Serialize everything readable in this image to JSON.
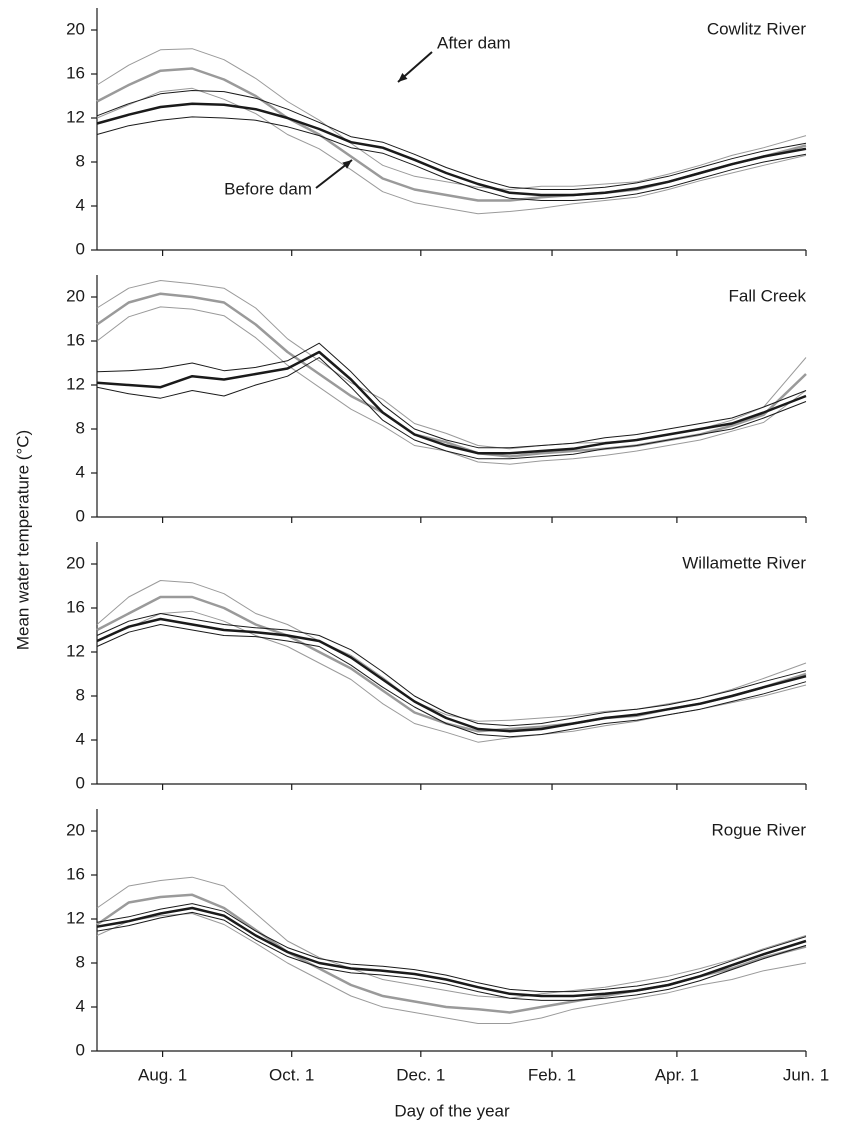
{
  "ylabel": "Mean water temperature (°C)",
  "xlabel": "Day of the year",
  "x": [
    0,
    15,
    30,
    45,
    60,
    75,
    90,
    105,
    120,
    135,
    150,
    165,
    180,
    195,
    210,
    225,
    240,
    255,
    270,
    285,
    300,
    315,
    335
  ],
  "xlim": [
    0,
    335
  ],
  "xticks": [
    {
      "value": 31,
      "label": "Aug. 1"
    },
    {
      "value": 92,
      "label": "Oct. 1"
    },
    {
      "value": 153,
      "label": "Dec. 1"
    },
    {
      "value": 215,
      "label": "Feb. 1"
    },
    {
      "value": 274,
      "label": "Apr. 1"
    },
    {
      "value": 335,
      "label": "Jun. 1"
    }
  ],
  "chart_data": [
    {
      "type": "line",
      "title": "Cowlitz River",
      "ylim": [
        0,
        22
      ],
      "yticks": [
        0,
        4,
        8,
        12,
        16,
        20
      ],
      "annotations": [
        {
          "text": "After dam"
        },
        {
          "text": "Before dam"
        }
      ],
      "series": [
        {
          "color": "#9a9a9a",
          "width": 2.5,
          "values": [
            13.5,
            15,
            16.3,
            16.5,
            15.5,
            14,
            12,
            10.5,
            8.5,
            6.5,
            5.5,
            5,
            4.5,
            4.5,
            4.8,
            5,
            5.2,
            5.5,
            6.2,
            7,
            7.8,
            8.5,
            9.5
          ]
        },
        {
          "color": "#9a9a9a",
          "width": 1,
          "values": [
            15,
            16.8,
            18.2,
            18.3,
            17.3,
            15.6,
            13.5,
            11.8,
            9.7,
            7.7,
            6.7,
            6.2,
            5.7,
            5.5,
            5.8,
            5.8,
            6,
            6.2,
            6.9,
            7.7,
            8.6,
            9.3,
            10.4
          ]
        },
        {
          "color": "#9a9a9a",
          "width": 1,
          "values": [
            12,
            13.2,
            14.4,
            14.7,
            13.7,
            12.4,
            10.5,
            9.2,
            7.3,
            5.3,
            4.3,
            3.8,
            3.3,
            3.5,
            3.8,
            4.2,
            4.5,
            4.8,
            5.5,
            6.3,
            7,
            7.7,
            8.6
          ]
        },
        {
          "color": "#1a1a1a",
          "width": 2.5,
          "values": [
            11.5,
            12.3,
            13,
            13.3,
            13.2,
            12.8,
            12,
            11,
            9.8,
            9.3,
            8.2,
            7,
            6,
            5.2,
            5,
            5,
            5.2,
            5.6,
            6.2,
            7,
            7.8,
            8.5,
            9.2
          ]
        },
        {
          "color": "#1a1a1a",
          "width": 1,
          "values": [
            12.2,
            13.3,
            14.2,
            14.5,
            14.4,
            13.8,
            12.8,
            11.6,
            10.3,
            9.8,
            8.7,
            7.5,
            6.5,
            5.7,
            5.5,
            5.5,
            5.7,
            6.1,
            6.7,
            7.5,
            8.3,
            9,
            9.7
          ]
        },
        {
          "color": "#1a1a1a",
          "width": 1,
          "values": [
            10.5,
            11.3,
            11.8,
            12.1,
            12,
            11.8,
            11.2,
            10.4,
            9.3,
            8.8,
            7.7,
            6.5,
            5.5,
            4.7,
            4.5,
            4.5,
            4.7,
            5.1,
            5.7,
            6.5,
            7.3,
            8,
            8.7
          ]
        }
      ]
    },
    {
      "type": "line",
      "title": "Fall Creek",
      "ylim": [
        0,
        22
      ],
      "yticks": [
        0,
        4,
        8,
        12,
        16,
        20
      ],
      "series": [
        {
          "color": "#9a9a9a",
          "width": 2.5,
          "values": [
            17.5,
            19.5,
            20.3,
            20,
            19.5,
            17.5,
            15,
            13,
            11,
            9.5,
            7.5,
            6.8,
            5.8,
            5.5,
            5.8,
            6,
            6.2,
            6.5,
            7,
            7.5,
            8.3,
            9.3,
            13
          ]
        },
        {
          "color": "#9a9a9a",
          "width": 1,
          "values": [
            19,
            20.8,
            21.5,
            21.2,
            20.8,
            19,
            16.2,
            14.2,
            12.2,
            10.7,
            8.5,
            7.6,
            6.5,
            6.2,
            6.5,
            6.7,
            6.8,
            7,
            7.5,
            8,
            8.8,
            10,
            14.5
          ]
        },
        {
          "color": "#9a9a9a",
          "width": 1,
          "values": [
            16,
            18.2,
            19.1,
            18.9,
            18.3,
            16.3,
            13.8,
            11.8,
            9.8,
            8.3,
            6.5,
            6,
            5,
            4.8,
            5.1,
            5.3,
            5.6,
            6,
            6.5,
            7,
            7.8,
            8.6,
            11.5
          ]
        },
        {
          "color": "#1a1a1a",
          "width": 2.5,
          "values": [
            12.2,
            12,
            11.8,
            12.8,
            12.5,
            13,
            13.5,
            15,
            12.5,
            9.5,
            7.5,
            6.5,
            5.8,
            5.8,
            6,
            6.2,
            6.7,
            7,
            7.5,
            8,
            8.5,
            9.5,
            11
          ]
        },
        {
          "color": "#1a1a1a",
          "width": 1,
          "values": [
            13.2,
            13.3,
            13.5,
            14,
            13.3,
            13.6,
            14.2,
            15.8,
            13.2,
            10.2,
            8,
            7,
            6.3,
            6.3,
            6.5,
            6.7,
            7.2,
            7.5,
            8,
            8.5,
            9,
            10,
            11.5
          ]
        },
        {
          "color": "#1a1a1a",
          "width": 1,
          "values": [
            11.8,
            11.2,
            10.8,
            11.5,
            11,
            12,
            12.8,
            14.5,
            11.8,
            8.8,
            7,
            6,
            5.3,
            5.3,
            5.5,
            5.7,
            6.2,
            6.5,
            7,
            7.5,
            8,
            9,
            10.5
          ]
        }
      ]
    },
    {
      "type": "line",
      "title": "Willamette River",
      "ylim": [
        0,
        22
      ],
      "yticks": [
        0,
        4,
        8,
        12,
        16,
        20
      ],
      "series": [
        {
          "color": "#9a9a9a",
          "width": 2.5,
          "values": [
            14,
            15.5,
            17,
            17,
            16,
            14.5,
            13.5,
            12,
            10.5,
            8.5,
            6.5,
            5.5,
            4.8,
            5,
            5.2,
            5.5,
            6,
            6.2,
            6.8,
            7.3,
            8,
            8.8,
            10
          ]
        },
        {
          "color": "#9a9a9a",
          "width": 1,
          "values": [
            14.5,
            17,
            18.5,
            18.3,
            17.3,
            15.5,
            14.5,
            13,
            11.7,
            9.7,
            7.5,
            6.3,
            5.7,
            5.8,
            6,
            6.2,
            6.6,
            6.8,
            7.3,
            7.8,
            8.6,
            9.6,
            11
          ]
        },
        {
          "color": "#9a9a9a",
          "width": 1,
          "values": [
            13,
            14.2,
            15.5,
            15.7,
            14.8,
            13.5,
            12.5,
            11,
            9.5,
            7.3,
            5.5,
            4.7,
            3.8,
            4.2,
            4.5,
            4.8,
            5.3,
            5.7,
            6.3,
            6.8,
            7.4,
            8,
            9
          ]
        },
        {
          "color": "#1a1a1a",
          "width": 2.5,
          "values": [
            13,
            14.3,
            15,
            14.5,
            14,
            13.8,
            13.5,
            13,
            11.5,
            9.5,
            7.5,
            6,
            5,
            4.8,
            5,
            5.5,
            6,
            6.3,
            6.8,
            7.3,
            8,
            8.8,
            9.8
          ]
        },
        {
          "color": "#1a1a1a",
          "width": 1,
          "values": [
            13.5,
            14.8,
            15.5,
            15,
            14.5,
            14.2,
            14,
            13.5,
            12.2,
            10.2,
            8,
            6.5,
            5.5,
            5.3,
            5.5,
            6,
            6.5,
            6.8,
            7.2,
            7.8,
            8.5,
            9.3,
            10.3
          ]
        },
        {
          "color": "#1a1a1a",
          "width": 1,
          "values": [
            12.5,
            13.8,
            14.5,
            14,
            13.5,
            13.4,
            13,
            12.5,
            10.8,
            8.8,
            7,
            5.5,
            4.5,
            4.3,
            4.5,
            5,
            5.5,
            5.8,
            6.3,
            6.8,
            7.5,
            8.2,
            9.3
          ]
        }
      ]
    },
    {
      "type": "line",
      "title": "Rogue River",
      "ylim": [
        0,
        22
      ],
      "yticks": [
        0,
        4,
        8,
        12,
        16,
        20
      ],
      "series": [
        {
          "color": "#9a9a9a",
          "width": 2.5,
          "values": [
            11.5,
            13.5,
            14,
            14.2,
            13,
            11,
            9,
            7.5,
            6,
            5,
            4.5,
            4,
            3.8,
            3.5,
            4,
            4.5,
            5,
            5.5,
            6,
            6.8,
            7.5,
            8.5,
            9.5
          ]
        },
        {
          "color": "#9a9a9a",
          "width": 1,
          "values": [
            13,
            15,
            15.5,
            15.8,
            15,
            12.5,
            10,
            8.5,
            7.5,
            6.5,
            6,
            5.5,
            5,
            4.8,
            5.2,
            5.5,
            5.8,
            6.3,
            6.8,
            7.5,
            8.3,
            9.3,
            10.5
          ]
        },
        {
          "color": "#9a9a9a",
          "width": 1,
          "values": [
            10.5,
            11.8,
            12.3,
            12.5,
            11.5,
            9.8,
            8,
            6.5,
            5,
            4,
            3.5,
            3,
            2.5,
            2.5,
            3,
            3.8,
            4.3,
            4.8,
            5.3,
            6,
            6.5,
            7.3,
            8
          ]
        },
        {
          "color": "#1a1a1a",
          "width": 2.5,
          "values": [
            11.3,
            11.8,
            12.5,
            13,
            12.3,
            10.5,
            9,
            8,
            7.5,
            7.3,
            7,
            6.5,
            5.8,
            5.2,
            5,
            5,
            5.2,
            5.5,
            6,
            6.8,
            7.8,
            8.8,
            10
          ]
        },
        {
          "color": "#1a1a1a",
          "width": 1,
          "values": [
            11.7,
            12.2,
            12.9,
            13.4,
            12.7,
            10.9,
            9.4,
            8.4,
            7.9,
            7.7,
            7.4,
            6.9,
            6.2,
            5.6,
            5.4,
            5.4,
            5.6,
            5.9,
            6.4,
            7.2,
            8.2,
            9.2,
            10.4
          ]
        },
        {
          "color": "#1a1a1a",
          "width": 1,
          "values": [
            10.9,
            11.4,
            12.1,
            12.6,
            11.9,
            10.1,
            8.6,
            7.6,
            7.1,
            6.9,
            6.6,
            6.1,
            5.4,
            4.8,
            4.6,
            4.6,
            4.8,
            5.1,
            5.6,
            6.4,
            7.4,
            8.4,
            9.6
          ]
        }
      ]
    }
  ]
}
